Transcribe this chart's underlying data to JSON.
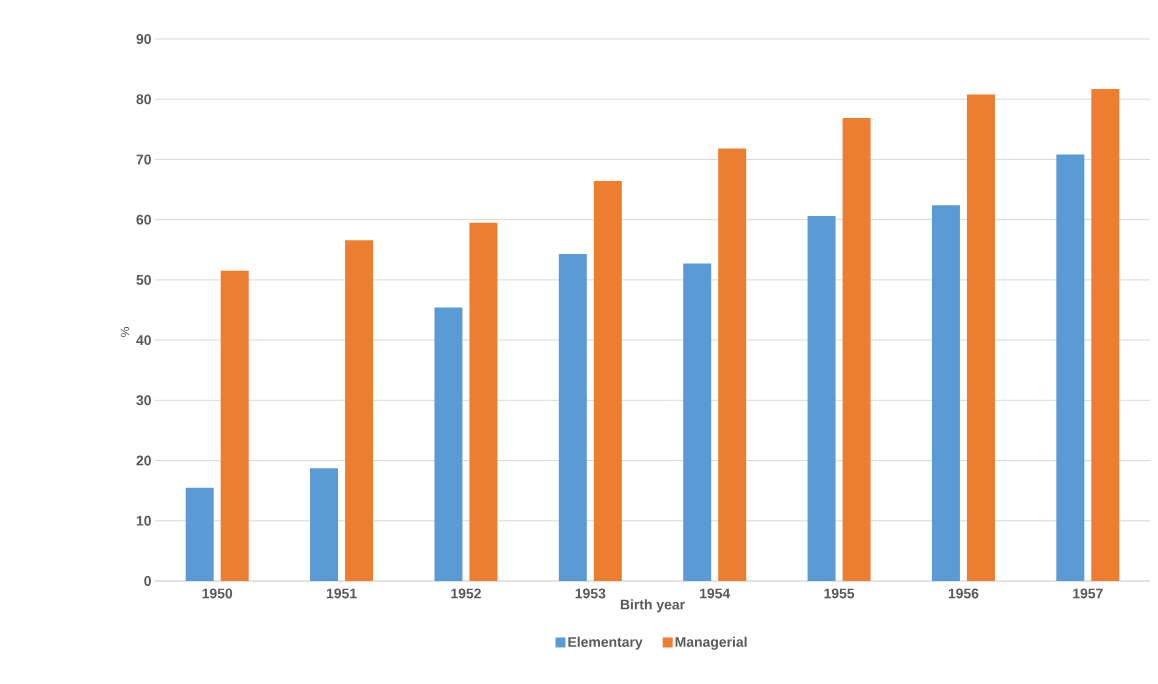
{
  "chart_data": {
    "type": "bar",
    "xlabel": "Birth year",
    "ylabel": "%",
    "categories": [
      "1950",
      "1951",
      "1952",
      "1953",
      "1954",
      "1955",
      "1956",
      "1957"
    ],
    "series": [
      {
        "name": "Elementary",
        "color": "#5b9bd5",
        "values": [
          15.5,
          18.7,
          45.4,
          54.3,
          52.7,
          60.6,
          62.4,
          70.8
        ]
      },
      {
        "name": "Managerial",
        "color": "#ed7d31",
        "values": [
          51.5,
          56.6,
          59.5,
          66.4,
          71.8,
          76.9,
          80.8,
          81.7
        ]
      }
    ],
    "ylim": [
      0,
      90
    ],
    "yticks": [
      0,
      10,
      20,
      30,
      40,
      50,
      60,
      70,
      80,
      90
    ],
    "grid": "y",
    "legend": "bottom"
  }
}
